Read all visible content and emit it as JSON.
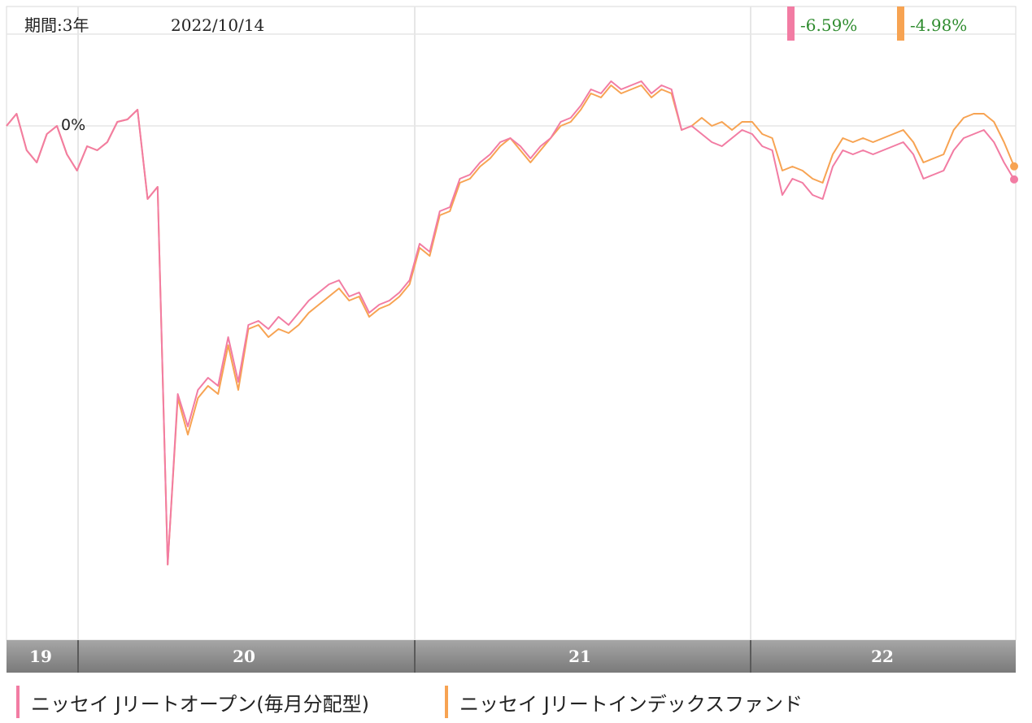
{
  "header": {
    "period_label": "期間:3年",
    "date": "2022/10/14"
  },
  "chart_data": {
    "type": "line",
    "y_reference_label": "0%",
    "x_tick_labels": [
      "19",
      "20",
      "21",
      "22"
    ],
    "series": [
      {
        "name": "ニッセイ Jリートオープン(毎月分配型)",
        "color": "#f27ca3",
        "final_return": "-6.59%",
        "values": [
          0.0,
          1.5,
          -3.0,
          -4.5,
          -1.0,
          0.0,
          -3.5,
          -5.5,
          -2.5,
          -3.0,
          -2.0,
          0.5,
          0.8,
          2.0,
          -9.0,
          -7.5,
          -54.0,
          -33.0,
          -37.0,
          -32.5,
          -31.0,
          -32.0,
          -26.0,
          -31.5,
          -24.5,
          -24.0,
          -25.0,
          -23.5,
          -24.5,
          -23.0,
          -21.5,
          -20.5,
          -19.5,
          -19.0,
          -21.0,
          -20.5,
          -23.0,
          -22.0,
          -21.5,
          -20.5,
          -19.0,
          -14.5,
          -15.5,
          -10.5,
          -10.0,
          -6.5,
          -6.0,
          -4.5,
          -3.5,
          -2.0,
          -1.5,
          -2.5,
          -4.0,
          -2.5,
          -1.5,
          0.5,
          1.0,
          2.5,
          4.5,
          4.0,
          5.5,
          4.5,
          5.0,
          5.5,
          4.0,
          5.0,
          4.5,
          -0.5,
          0.0,
          -1.0,
          -2.0,
          -2.5,
          -1.5,
          -0.5,
          -1.0,
          -2.5,
          -3.0,
          -8.5,
          -6.5,
          -7.0,
          -8.5,
          -9.0,
          -5.0,
          -3.0,
          -3.5,
          -3.0,
          -3.5,
          -3.0,
          -2.5,
          -2.0,
          -3.5,
          -6.5,
          -6.0,
          -5.5,
          -3.0,
          -1.5,
          -1.0,
          -0.5,
          -2.0,
          -4.5,
          -6.59
        ]
      },
      {
        "name": "ニッセイ Jリートインデックスファンド",
        "color": "#f7a352",
        "final_return": "-4.98%",
        "values": [
          0.0,
          1.5,
          -3.0,
          -4.5,
          -1.0,
          0.0,
          -3.5,
          -5.5,
          -2.5,
          -3.0,
          -2.0,
          0.5,
          0.8,
          2.0,
          -9.0,
          -7.5,
          -54.0,
          -33.5,
          -38.0,
          -33.5,
          -32.0,
          -33.0,
          -27.0,
          -32.5,
          -25.0,
          -24.5,
          -26.0,
          -25.0,
          -25.5,
          -24.5,
          -23.0,
          -22.0,
          -21.0,
          -20.0,
          -21.5,
          -21.0,
          -23.5,
          -22.5,
          -22.0,
          -21.0,
          -19.5,
          -15.0,
          -16.0,
          -11.0,
          -10.5,
          -7.0,
          -6.5,
          -5.0,
          -4.0,
          -2.5,
          -1.5,
          -3.0,
          -4.5,
          -3.0,
          -1.5,
          0.0,
          0.5,
          2.0,
          4.0,
          3.5,
          5.0,
          4.0,
          4.5,
          5.0,
          3.5,
          4.5,
          4.0,
          -0.5,
          0.0,
          1.0,
          0.0,
          0.5,
          -0.5,
          0.5,
          0.5,
          -1.0,
          -1.5,
          -5.5,
          -5.0,
          -5.5,
          -6.5,
          -7.0,
          -3.5,
          -1.5,
          -2.0,
          -1.5,
          -2.0,
          -1.5,
          -1.0,
          -0.5,
          -2.0,
          -4.5,
          -4.0,
          -3.5,
          -0.5,
          1.0,
          1.5,
          1.5,
          0.5,
          -2.0,
          -4.98
        ]
      }
    ],
    "grid": true
  }
}
